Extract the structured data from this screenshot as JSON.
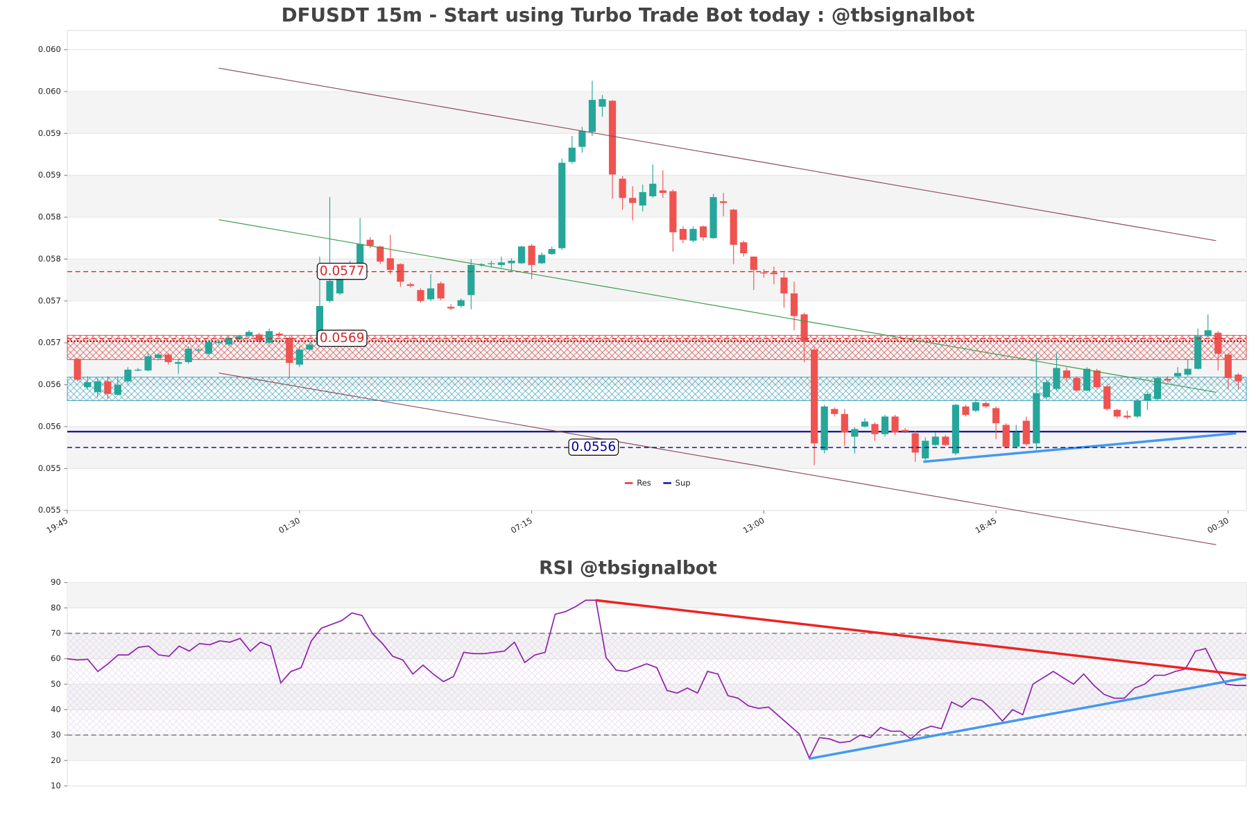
{
  "chart_data": [
    {
      "type": "candlestick",
      "title": "DFUSDT 15m - Start using Turbo Trade Bot today : @tbsignalbot",
      "up_color": "#26a69a",
      "down_color": "#ef5350",
      "xlim": [
        -1,
        115.8
      ],
      "xticks": [
        {
          "value": -1,
          "label": "19:45"
        },
        {
          "value": 22,
          "label": "01:30"
        },
        {
          "value": 45,
          "label": "07:15"
        },
        {
          "value": 68,
          "label": "13:00"
        },
        {
          "value": 91,
          "label": "18:45"
        },
        {
          "value": 114,
          "label": "00:30"
        }
      ],
      "ylim": [
        0.05485,
        0.06058
      ],
      "yticks": [
        {
          "value": 0.05485,
          "label": "0.055"
        },
        {
          "value": 0.05535,
          "label": "0.055"
        },
        {
          "value": 0.05585,
          "label": "0.056"
        },
        {
          "value": 0.05635,
          "label": "0.056"
        },
        {
          "value": 0.05685,
          "label": "0.057"
        },
        {
          "value": 0.05735,
          "label": "0.057"
        },
        {
          "value": 0.05785,
          "label": "0.058"
        },
        {
          "value": 0.05835,
          "label": "0.058"
        },
        {
          "value": 0.05885,
          "label": "0.059"
        },
        {
          "value": 0.05935,
          "label": "0.059"
        },
        {
          "value": 0.05985,
          "label": "0.060"
        },
        {
          "value": 0.06035,
          "label": "0.060"
        }
      ],
      "grid": true,
      "open": [
        0.05666,
        0.05632,
        0.05626,
        0.05639,
        0.05623,
        0.05639,
        0.05652,
        0.05652,
        0.05667,
        0.05671,
        0.0566,
        0.05662,
        0.05676,
        0.05672,
        0.05685,
        0.05683,
        0.05689,
        0.05693,
        0.05695,
        0.05685,
        0.05696,
        0.05691,
        0.05659,
        0.05677,
        0.05683,
        0.05735,
        0.05744,
        0.05769,
        0.05779,
        0.05808,
        0.058,
        0.05786,
        0.05779,
        0.05755,
        0.05748,
        0.05737,
        0.05756,
        0.05728,
        0.05729,
        0.05742,
        0.05778,
        0.05779,
        0.05778,
        0.0578,
        0.0578,
        0.05801,
        0.0578,
        0.05791,
        0.05798,
        0.05901,
        0.05919,
        0.05937,
        0.05967,
        0.05974,
        0.05881,
        0.05858,
        0.05849,
        0.0586,
        0.05867,
        0.05866,
        0.05821,
        0.05807,
        0.05824,
        0.0581,
        0.05854,
        0.05844,
        0.05805,
        0.05788,
        0.05769,
        0.05769,
        0.05763,
        0.05744,
        0.05719,
        0.05677,
        0.05557,
        0.05606,
        0.056,
        0.05573,
        0.05585,
        0.05588,
        0.05576,
        0.05597,
        0.05581,
        0.05577,
        0.05547,
        0.05563,
        0.05573,
        0.05553,
        0.05609,
        0.05604,
        0.05613,
        0.05607,
        0.05587,
        0.05561,
        0.05592,
        0.05565,
        0.0562,
        0.0563,
        0.05652,
        0.05643,
        0.05628,
        0.05652,
        0.05633,
        0.05605,
        0.05598,
        0.05597,
        0.05616,
        0.05618,
        0.05642,
        0.05645,
        0.05647,
        0.05654,
        0.05693,
        0.05697,
        0.05671,
        0.05647
      ],
      "high": [
        0.05666,
        0.05645,
        0.05643,
        0.05645,
        0.05645,
        0.05656,
        0.05655,
        0.05673,
        0.05673,
        0.05673,
        0.05666,
        0.05681,
        0.05679,
        0.05689,
        0.05688,
        0.05693,
        0.05694,
        0.057,
        0.05697,
        0.05702,
        0.05698,
        0.05693,
        0.05681,
        0.05685,
        0.05788,
        0.05859,
        0.05779,
        0.05783,
        0.05834,
        0.05811,
        0.05801,
        0.05814,
        0.0578,
        0.05757,
        0.0575,
        0.05767,
        0.05758,
        0.05731,
        0.05738,
        0.05785,
        0.0578,
        0.05783,
        0.05788,
        0.05786,
        0.05801,
        0.05803,
        0.05793,
        0.058,
        0.05905,
        0.05932,
        0.05943,
        0.05998,
        0.05981,
        0.05975,
        0.05884,
        0.05872,
        0.05874,
        0.05898,
        0.05891,
        0.05868,
        0.05824,
        0.05824,
        0.05825,
        0.05863,
        0.05864,
        0.05845,
        0.05807,
        0.05788,
        0.05773,
        0.05776,
        0.05769,
        0.05758,
        0.05721,
        0.0568,
        0.05611,
        0.05608,
        0.05606,
        0.05584,
        0.05595,
        0.0559,
        0.05599,
        0.05599,
        0.05583,
        0.0558,
        0.05572,
        0.05578,
        0.05575,
        0.05612,
        0.05611,
        0.05618,
        0.05615,
        0.05609,
        0.05589,
        0.05587,
        0.05597,
        0.05673,
        0.05641,
        0.05673,
        0.05656,
        0.05645,
        0.05656,
        0.05654,
        0.05635,
        0.05606,
        0.05604,
        0.05618,
        0.05626,
        0.05645,
        0.05645,
        0.05656,
        0.05666,
        0.05702,
        0.05719,
        0.05699,
        0.05673,
        0.05649
      ],
      "low": [
        0.05639,
        0.05629,
        0.0562,
        0.05618,
        0.05622,
        0.05637,
        0.05651,
        0.05651,
        0.05664,
        0.05659,
        0.05648,
        0.0566,
        0.05674,
        0.05671,
        0.05683,
        0.05681,
        0.05687,
        0.05691,
        0.05686,
        0.05683,
        0.05693,
        0.05643,
        0.05656,
        0.05675,
        0.05681,
        0.05733,
        0.05742,
        0.05767,
        0.05775,
        0.05798,
        0.05779,
        0.05767,
        0.05752,
        0.05751,
        0.05733,
        0.05735,
        0.05736,
        0.05724,
        0.05727,
        0.05725,
        0.05776,
        0.05775,
        0.05775,
        0.05772,
        0.05779,
        0.05761,
        0.05779,
        0.0579,
        0.05796,
        0.05899,
        0.05912,
        0.05932,
        0.05955,
        0.05857,
        0.05844,
        0.05831,
        0.05842,
        0.05858,
        0.05858,
        0.05794,
        0.05804,
        0.05805,
        0.05807,
        0.05809,
        0.05836,
        0.05779,
        0.05788,
        0.05748,
        0.05763,
        0.05755,
        0.05727,
        0.057,
        0.05662,
        0.05539,
        0.05553,
        0.05597,
        0.05562,
        0.05553,
        0.05584,
        0.05568,
        0.05573,
        0.05575,
        0.05577,
        0.05543,
        0.05545,
        0.05562,
        0.05562,
        0.05551,
        0.05597,
        0.05602,
        0.05607,
        0.0557,
        0.05559,
        0.05559,
        0.05562,
        0.05557,
        0.05618,
        0.05628,
        0.0564,
        0.05627,
        0.05627,
        0.0563,
        0.05604,
        0.05595,
        0.05594,
        0.05595,
        0.05605,
        0.05616,
        0.05638,
        0.05643,
        0.05645,
        0.05653,
        0.05693,
        0.05652,
        0.05629,
        0.05629
      ],
      "close": [
        0.05641,
        0.05638,
        0.05639,
        0.05624,
        0.05635,
        0.05653,
        0.05653,
        0.05669,
        0.05671,
        0.05662,
        0.05662,
        0.05678,
        0.05677,
        0.05686,
        0.05686,
        0.05691,
        0.05693,
        0.05698,
        0.05688,
        0.05699,
        0.05694,
        0.05661,
        0.05677,
        0.05683,
        0.05729,
        0.05759,
        0.05777,
        0.0578,
        0.05803,
        0.05801,
        0.05782,
        0.05772,
        0.05758,
        0.05753,
        0.05735,
        0.0575,
        0.05738,
        0.05726,
        0.05736,
        0.05778,
        0.05779,
        0.0578,
        0.05781,
        0.05783,
        0.058,
        0.05778,
        0.0579,
        0.05797,
        0.059,
        0.05918,
        0.05938,
        0.05975,
        0.05976,
        0.05886,
        0.05858,
        0.05852,
        0.05865,
        0.05875,
        0.05864,
        0.05817,
        0.05808,
        0.05821,
        0.05811,
        0.05859,
        0.05852,
        0.05802,
        0.05792,
        0.05772,
        0.05768,
        0.05767,
        0.05744,
        0.05717,
        0.05686,
        0.05565,
        0.05609,
        0.056,
        0.05578,
        0.05582,
        0.05591,
        0.05576,
        0.05597,
        0.05578,
        0.05579,
        0.05554,
        0.05568,
        0.05573,
        0.05563,
        0.05611,
        0.05599,
        0.05614,
        0.05609,
        0.05589,
        0.05561,
        0.05578,
        0.05564,
        0.05625,
        0.05638,
        0.05655,
        0.05643,
        0.05628,
        0.05654,
        0.05632,
        0.05606,
        0.05597,
        0.05596,
        0.05616,
        0.05624,
        0.05643,
        0.0564,
        0.05649,
        0.05654,
        0.05693,
        0.057,
        0.05672,
        0.05643,
        0.05639
      ],
      "zones": [
        {
          "from": 0.05665,
          "to": 0.05694,
          "color": "#d62728"
        },
        {
          "from": 0.05616,
          "to": 0.05644,
          "color": "#1a8fb0"
        }
      ],
      "hlines": [
        {
          "value": 0.05687,
          "color": "#cc0000",
          "style": "dotted"
        },
        {
          "value": 0.05579,
          "color": "#1a1aa0",
          "style": "solid"
        }
      ],
      "resistance": {
        "name": "Res",
        "color": "#d62728",
        "levels": [
          0.0577,
          0.0569
        ]
      },
      "support": {
        "name": "Sup",
        "color": "#0000a0",
        "levels": [
          0.0556
        ]
      },
      "legend": "lower center",
      "trendlines": [
        {
          "x1": 14,
          "y1": 0.06013,
          "x2": 112.8,
          "y2": 0.05807,
          "color": "#8b4a5a",
          "width": 1
        },
        {
          "x1": 14,
          "y1": 0.05649,
          "x2": 112.8,
          "y2": 0.05444,
          "color": "#8b4a5a",
          "width": 1
        },
        {
          "x1": 14,
          "y1": 0.05832,
          "x2": 112.8,
          "y2": 0.05626,
          "color": "#3a9a4a",
          "width": 1
        },
        {
          "x1": 83.8,
          "y1": 0.05543,
          "x2": 114.8,
          "y2": 0.05577,
          "color": "#4499ee",
          "width": 3
        }
      ]
    },
    {
      "type": "line",
      "title": "RSI @tbsignalbot",
      "color": "#8e24aa",
      "xlim": [
        0,
        116
      ],
      "ylim": [
        10,
        90
      ],
      "yticks": [
        10,
        20,
        30,
        40,
        50,
        60,
        70,
        80,
        90
      ],
      "grid": true,
      "levels": [
        70,
        30
      ],
      "band": [
        30,
        70
      ],
      "values": [
        60,
        59.5,
        59.8,
        55,
        58,
        61.5,
        61.5,
        64.5,
        65,
        61.5,
        61,
        65,
        63,
        66,
        65.5,
        67,
        66.5,
        68,
        63,
        66.5,
        65,
        50.5,
        55,
        56.5,
        67,
        72,
        73.5,
        75,
        78,
        77,
        70,
        66,
        61,
        59.5,
        54,
        57.5,
        54,
        51,
        53,
        62.5,
        62,
        62,
        62.5,
        63,
        66.5,
        58.5,
        61.5,
        62.5,
        77.5,
        78.5,
        80.5,
        83,
        83,
        60.5,
        55.5,
        55,
        56.5,
        58,
        56.5,
        47.5,
        46.5,
        48.5,
        46.5,
        55,
        54,
        45.5,
        44.5,
        41.5,
        40.5,
        41,
        37.5,
        34,
        30.5,
        21,
        29,
        28.5,
        27,
        27.5,
        30,
        29,
        33,
        31.5,
        31.5,
        28.5,
        32,
        33.5,
        32.5,
        43,
        41,
        44.5,
        43.5,
        40,
        35.5,
        40,
        38,
        50,
        52.5,
        55,
        52.5,
        50,
        54,
        49.5,
        46,
        44.5,
        44.5,
        48.5,
        50,
        53.5,
        53.5,
        55,
        56,
        63,
        64,
        56,
        50,
        49.5,
        49.5
      ],
      "trendlines": [
        {
          "x1": 52,
          "y1": 83,
          "x2": 116,
          "y2": 53.5,
          "color": "#ee2222",
          "width": 3
        },
        {
          "x1": 73,
          "y1": 20.7,
          "x2": 116,
          "y2": 52.5,
          "color": "#4499ee",
          "width": 3
        }
      ]
    }
  ]
}
